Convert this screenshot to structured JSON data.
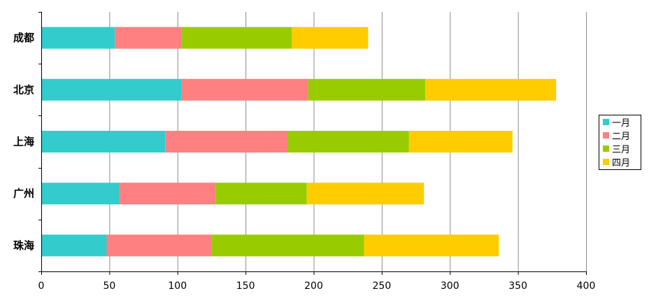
{
  "chart_data": {
    "type": "bar",
    "orientation": "horizontal",
    "stacked": true,
    "categories": [
      "成都",
      "北京",
      "上海",
      "广州",
      "珠海"
    ],
    "series": [
      {
        "name": "一月",
        "color": "#33CCCC",
        "values": [
          54,
          103,
          91,
          57,
          48
        ]
      },
      {
        "name": "二月",
        "color": "#FF8080",
        "values": [
          49,
          93,
          90,
          71,
          77
        ]
      },
      {
        "name": "三月",
        "color": "#99CC00",
        "values": [
          81,
          86,
          89,
          67,
          112
        ]
      },
      {
        "name": "四月",
        "color": "#FFCC00",
        "values": [
          56,
          96,
          76,
          86,
          99
        ]
      }
    ],
    "xlim": [
      0,
      400
    ],
    "xticks": [
      0,
      50,
      100,
      150,
      200,
      250,
      300,
      350,
      400
    ],
    "grid": "vertical",
    "legend_position": "right",
    "title": "",
    "xlabel": "",
    "ylabel": ""
  }
}
